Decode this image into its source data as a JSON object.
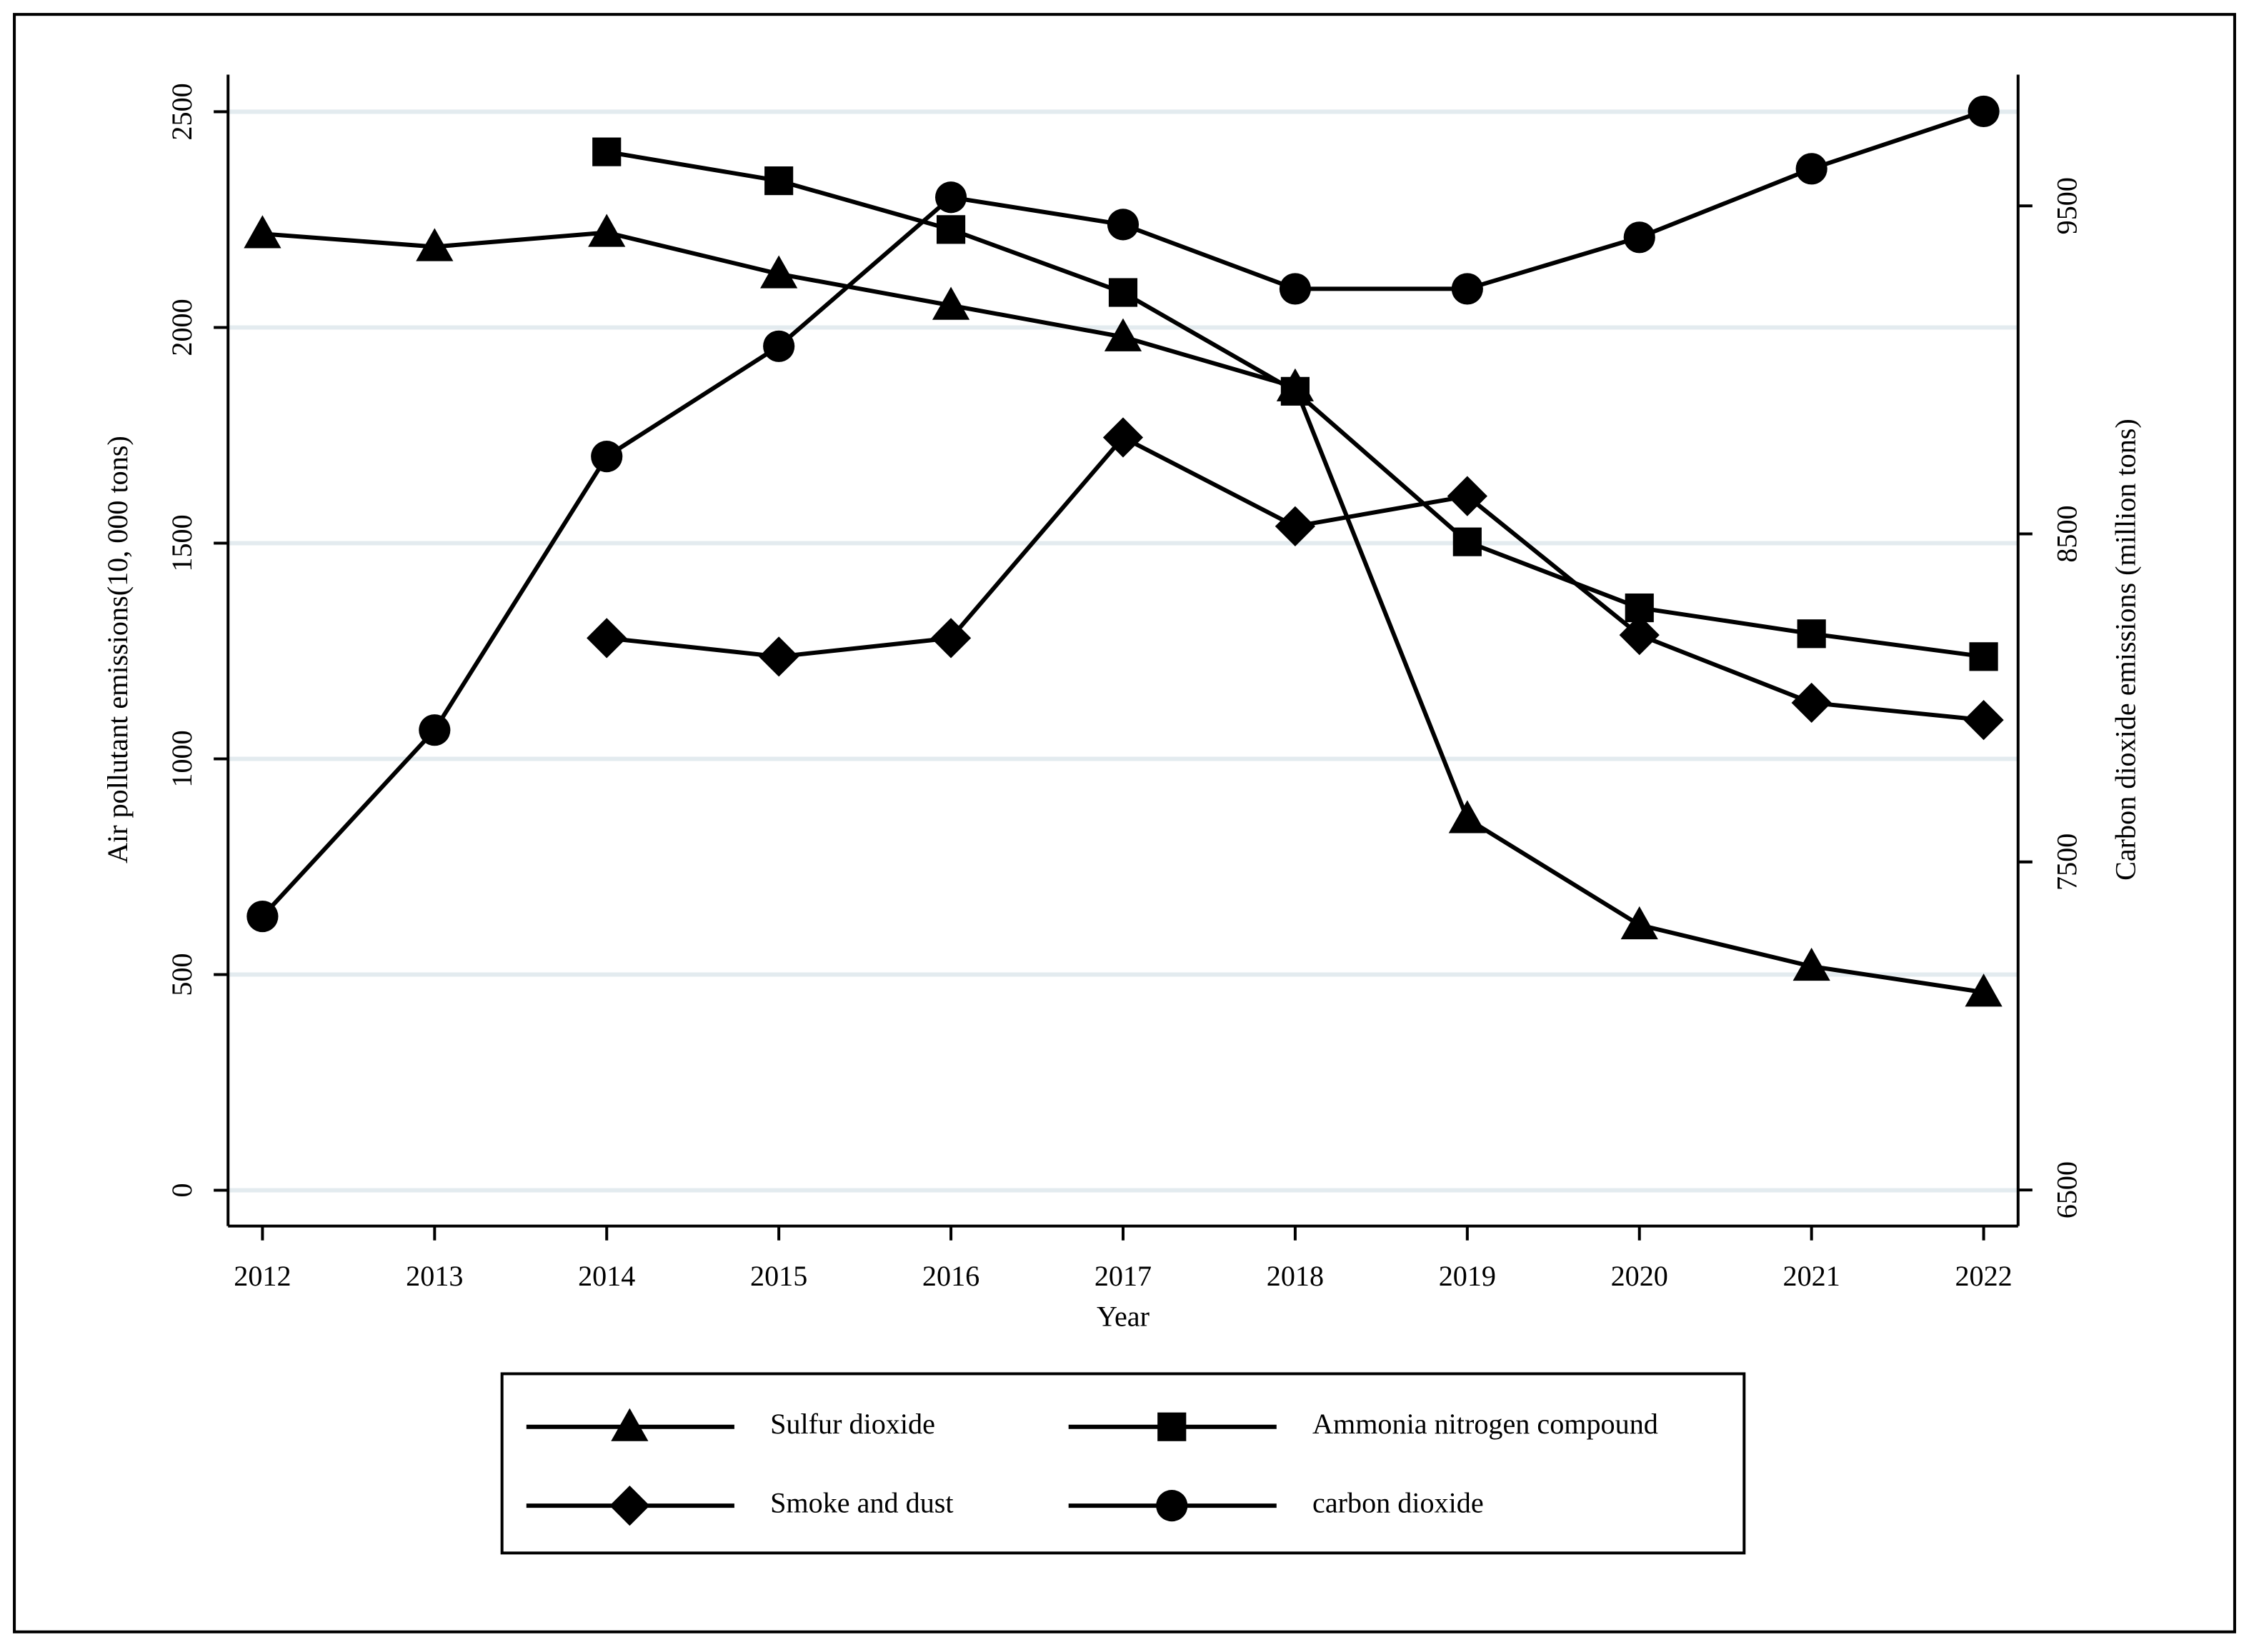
{
  "chart_data": {
    "type": "line",
    "x_label": "Year",
    "y_label": "Air pollutant emissions(10, 000 tons)",
    "y2_label": "Carbon dioxide emissions (million tons)",
    "x": [
      2012,
      2013,
      2014,
      2015,
      2016,
      2017,
      2018,
      2019,
      2020,
      2021,
      2022
    ],
    "xlim": [
      2011.8,
      2022.2
    ],
    "xticks": [
      2012,
      2013,
      2014,
      2015,
      2016,
      2017,
      2018,
      2019,
      2020,
      2021,
      2022
    ],
    "ylim": [
      -83,
      2586
    ],
    "yticks": [
      0,
      500,
      1000,
      1500,
      2000,
      2500
    ],
    "y2lim": [
      6390,
      9900
    ],
    "y2ticks": [
      6500,
      7500,
      8500,
      9500
    ],
    "grid": true,
    "legend": "bottom",
    "series": [
      {
        "name": "Sulfur dioxide",
        "color": "#000000",
        "marker": "triangle",
        "values": [
          2217,
          2187,
          2220,
          2124,
          2051,
          1978,
          1862,
          861,
          615,
          519,
          459
        ]
      },
      {
        "name": "Ammonia nitrogen compound",
        "color": "#000000",
        "marker": "square",
        "values": [
          null,
          null,
          2407,
          2340,
          2227,
          2081,
          1852,
          1503,
          1350,
          1290,
          1237
        ]
      },
      {
        "name": "Smoke and dust",
        "color": "#000000",
        "marker": "diamond",
        "values": [
          null,
          null,
          1280,
          1237,
          1280,
          1745,
          1539,
          1609,
          1287,
          1130,
          1090
        ]
      },
      {
        "name": "carbon dioxide",
        "color": "#000000",
        "marker": "circle",
        "axis": "y2",
        "values": [
          7334,
          7902,
          8736,
          9072,
          9526,
          9443,
          9247,
          9247,
          9404,
          9613,
          9788
        ]
      }
    ]
  }
}
